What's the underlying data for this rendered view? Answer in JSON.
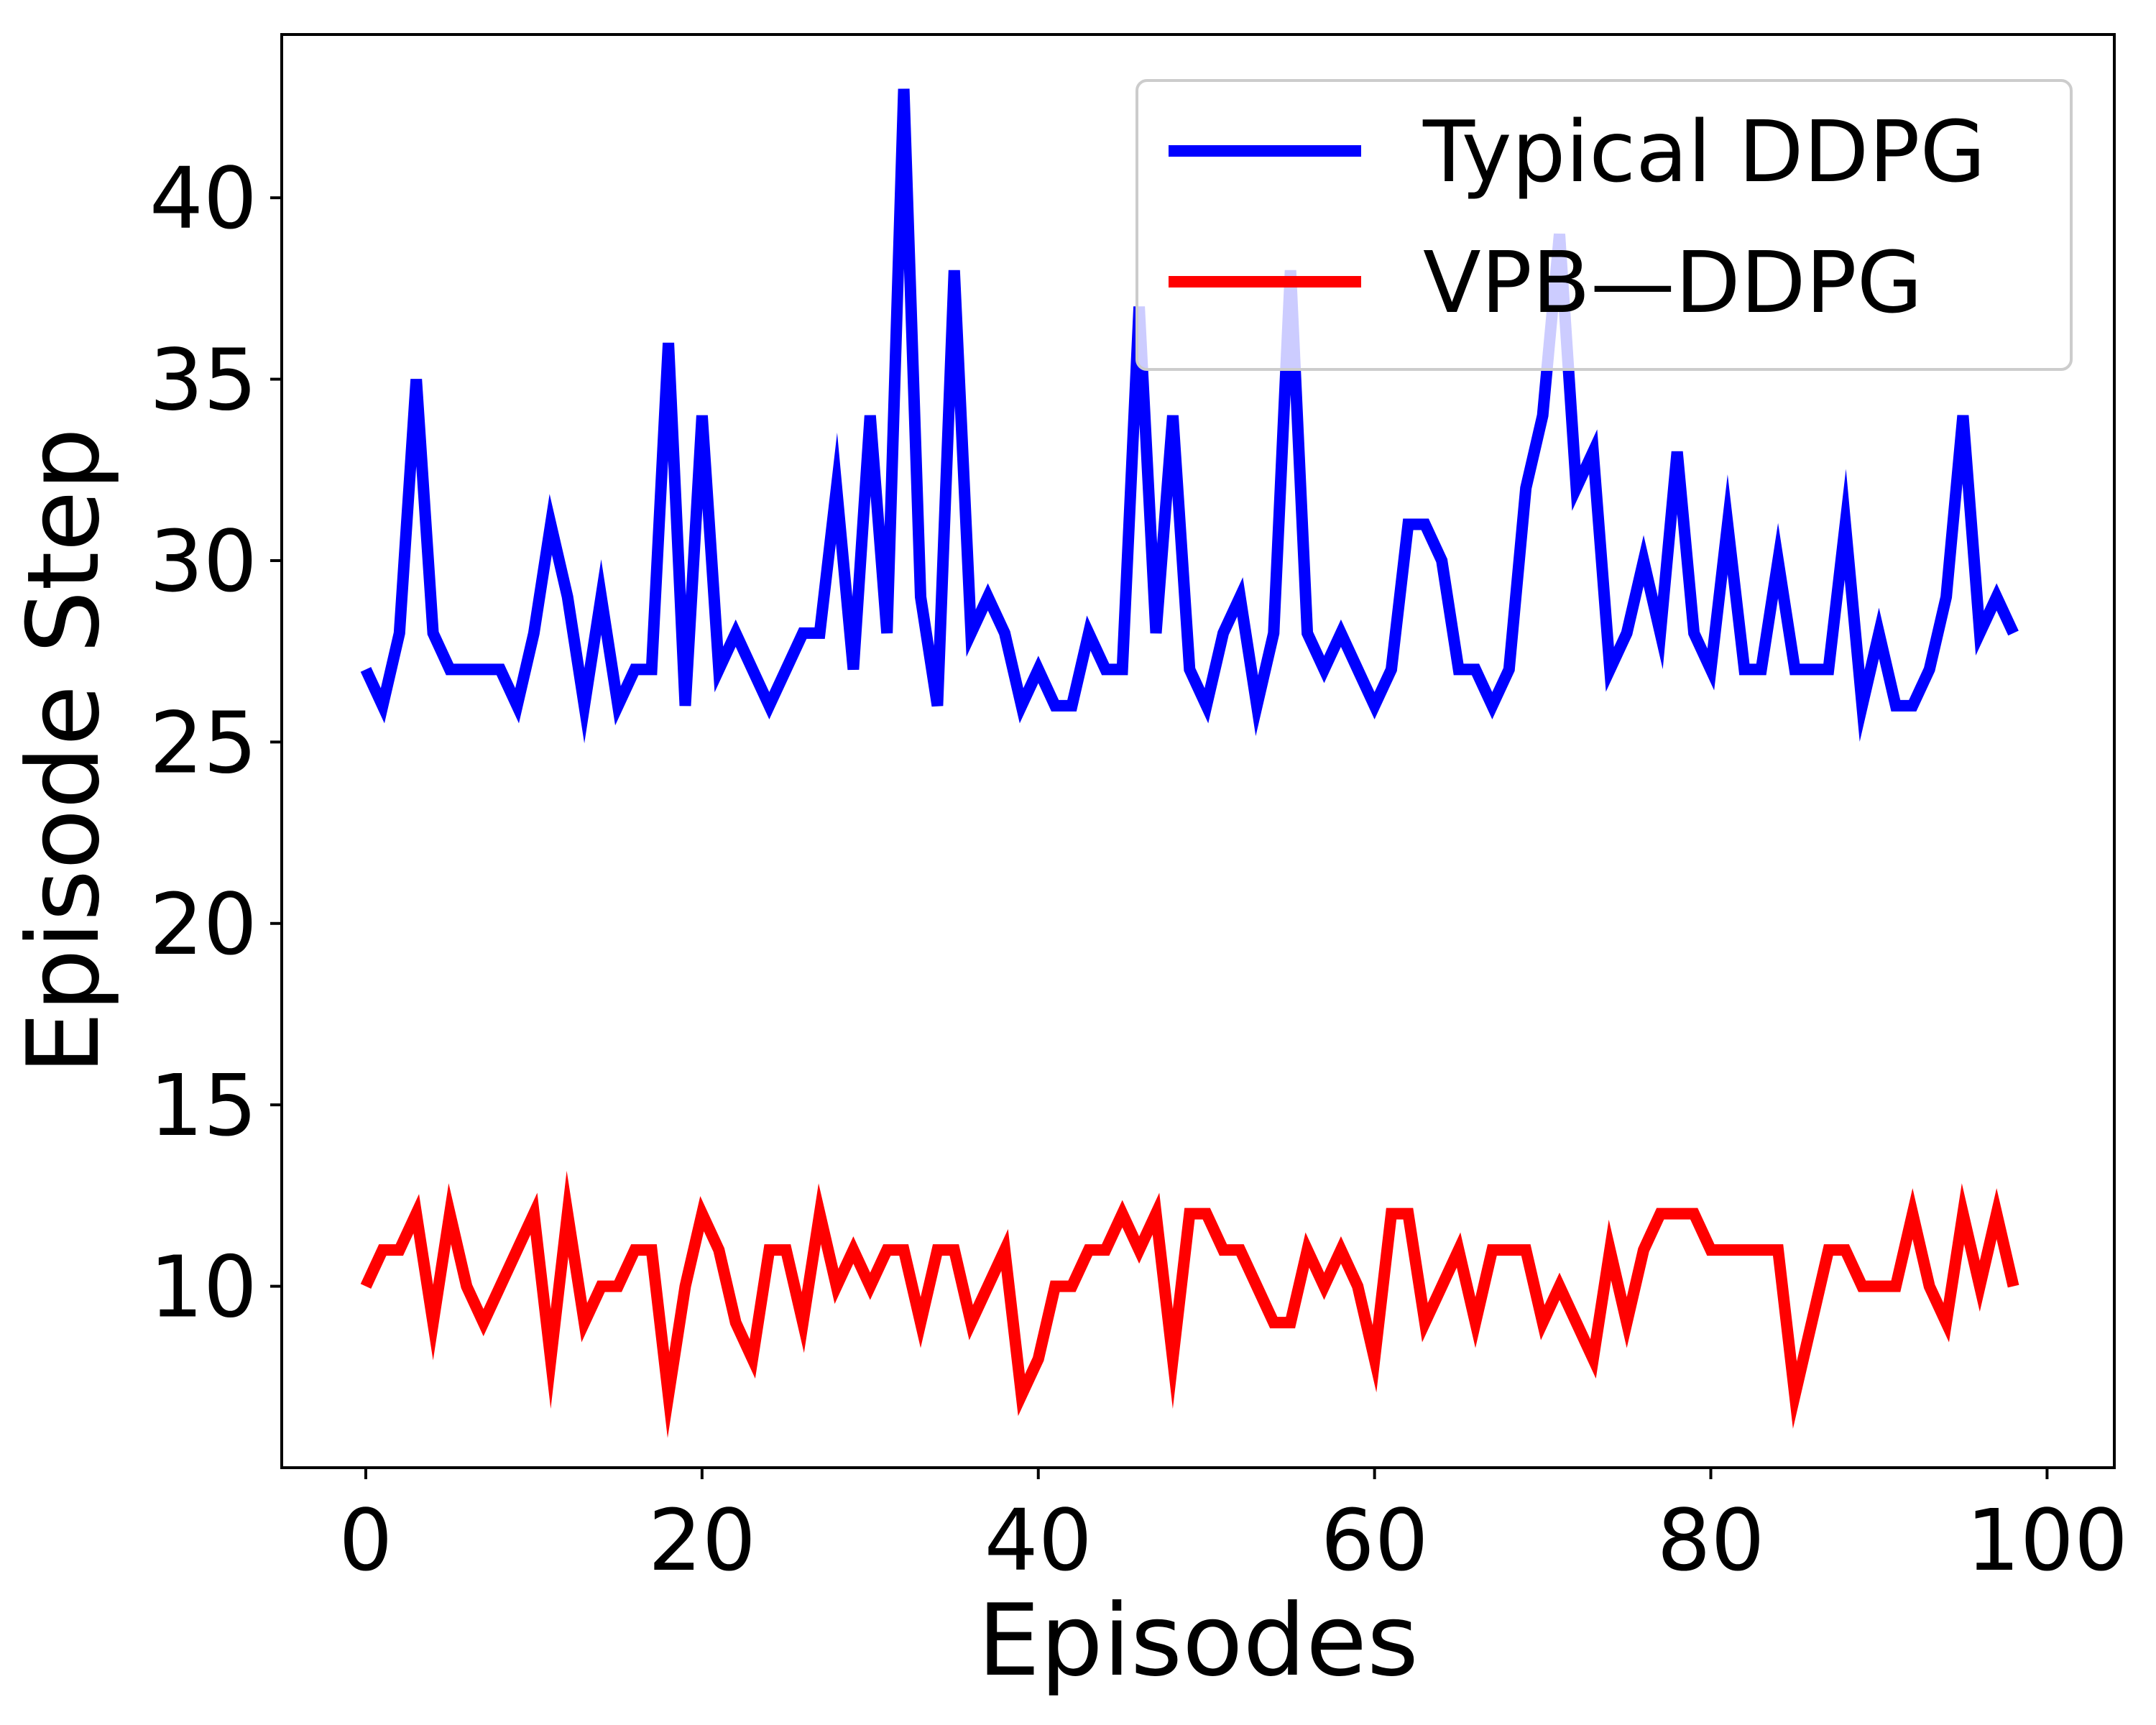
{
  "chart_data": {
    "type": "line",
    "title": "",
    "xlabel": "Episodes",
    "ylabel": "Episode Step",
    "xlim": [
      -5,
      104
    ],
    "ylim": [
      5,
      44.5
    ],
    "xticks": [
      0,
      20,
      40,
      60,
      80,
      100
    ],
    "yticks": [
      10,
      15,
      20,
      25,
      30,
      35,
      40
    ],
    "grid": false,
    "legend_position": "top-right",
    "x": [
      0,
      1,
      2,
      3,
      4,
      5,
      6,
      7,
      8,
      9,
      10,
      11,
      12,
      13,
      14,
      15,
      16,
      17,
      18,
      19,
      20,
      21,
      22,
      23,
      24,
      25,
      26,
      27,
      28,
      29,
      30,
      31,
      32,
      33,
      34,
      35,
      36,
      37,
      38,
      39,
      40,
      41,
      42,
      43,
      44,
      45,
      46,
      47,
      48,
      49,
      50,
      51,
      52,
      53,
      54,
      55,
      56,
      57,
      58,
      59,
      60,
      61,
      62,
      63,
      64,
      65,
      66,
      67,
      68,
      69,
      70,
      71,
      72,
      73,
      74,
      75,
      76,
      77,
      78,
      79,
      80,
      81,
      82,
      83,
      84,
      85,
      86,
      87,
      88,
      89,
      90,
      91,
      92,
      93,
      94,
      95,
      96,
      97,
      98
    ],
    "series": [
      {
        "name": "Typical DDPG",
        "color": "#0000ff",
        "values": [
          27,
          26,
          28,
          35,
          28,
          27,
          27,
          27,
          27,
          26,
          28,
          31,
          29,
          26,
          29,
          26,
          27,
          27,
          36,
          26,
          34,
          27,
          28,
          27,
          26,
          27,
          28,
          28,
          32,
          27,
          34,
          28,
          43,
          29,
          26,
          38,
          28,
          29,
          28,
          26,
          27,
          26,
          26,
          28,
          27,
          27,
          37,
          28,
          34,
          27,
          26,
          28,
          29,
          26,
          28,
          38,
          28,
          27,
          28,
          27,
          26,
          27,
          31,
          31,
          30,
          27,
          27,
          26,
          27,
          32,
          34,
          39,
          32,
          33,
          27,
          28,
          30,
          28,
          33,
          28,
          27,
          31,
          27,
          27,
          30,
          27,
          27,
          27,
          31,
          26,
          28,
          26,
          26,
          27,
          29,
          34,
          28,
          29,
          28
        ]
      },
      {
        "name": "VPB—DDPG",
        "color": "#ff0000",
        "values": [
          10,
          11,
          11,
          12,
          9,
          12,
          10,
          9,
          10,
          11,
          12,
          8,
          12,
          9,
          10,
          10,
          11,
          11,
          7,
          10,
          12,
          11,
          9,
          8,
          11,
          11,
          9,
          12,
          10,
          11,
          10,
          11,
          11,
          9,
          11,
          11,
          9,
          10,
          11,
          7,
          8,
          10,
          10,
          11,
          11,
          12,
          11,
          12,
          8,
          12,
          12,
          11,
          11,
          10,
          9,
          9,
          11,
          10,
          11,
          10,
          8,
          12,
          12,
          9,
          10,
          11,
          9,
          11,
          11,
          11,
          9,
          10,
          9,
          8,
          11,
          9,
          11,
          12,
          12,
          12,
          11,
          11,
          11,
          11,
          11,
          7,
          9,
          11,
          11,
          10,
          10,
          10,
          12,
          10,
          9,
          12,
          10,
          12,
          10
        ]
      }
    ]
  }
}
